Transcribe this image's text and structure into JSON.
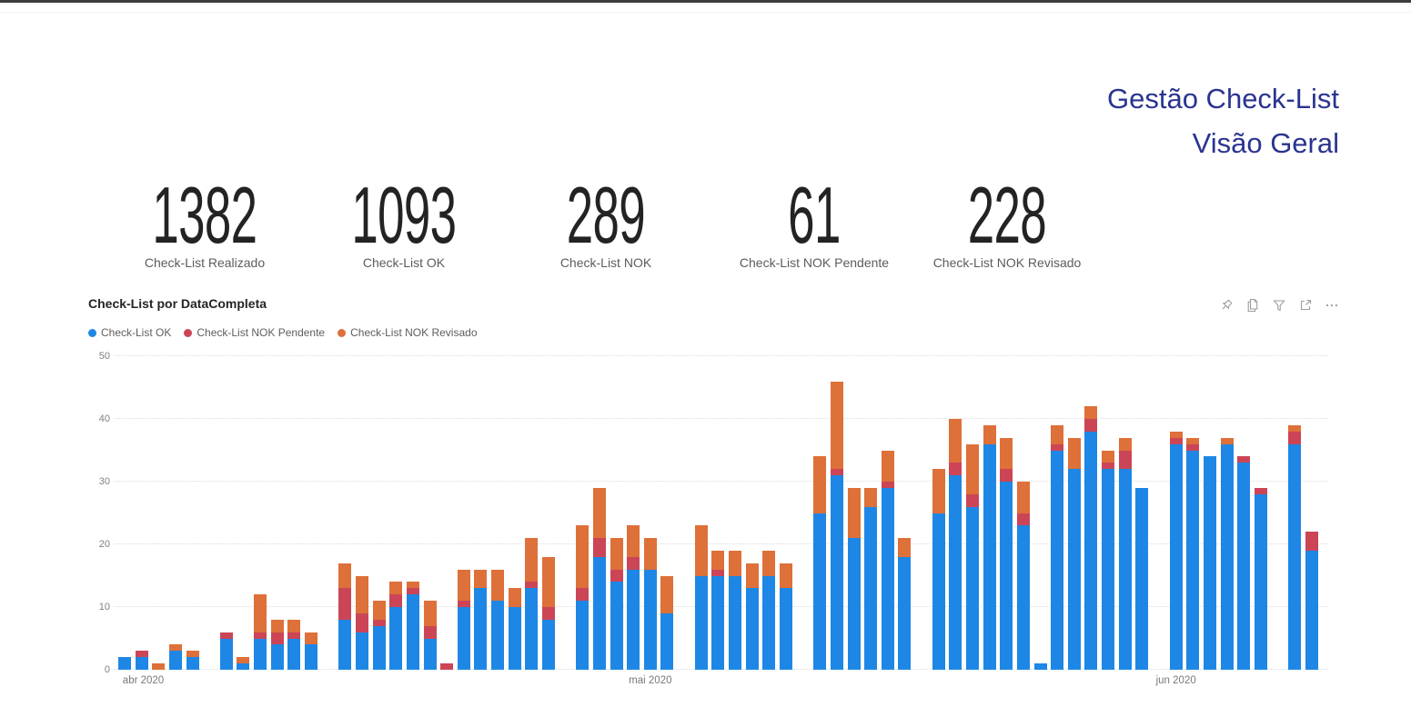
{
  "report": {
    "title_line1": "Gestão Check-List",
    "title_line2": "Visão Geral",
    "title_color": "#2A3490"
  },
  "kpis": [
    {
      "value": "1382",
      "label": "Check-List Realizado"
    },
    {
      "value": "1093",
      "label": "Check-List OK"
    },
    {
      "value": "289",
      "label": "Check-List NOK"
    },
    {
      "value": "61",
      "label": "Check-List NOK Pendente"
    },
    {
      "value": "228",
      "label": "Check-List NOK Revisado"
    }
  ],
  "visual_header": {
    "icons": [
      "pin",
      "copy",
      "filter",
      "focus-mode",
      "more-options"
    ],
    "icon_color": "#7e7e7e"
  },
  "chart_data": {
    "type": "bar",
    "stacked": true,
    "title": "Check-List por DataCompleta",
    "xlabel": "DataCompleta",
    "ylabel": "",
    "ylim": [
      0,
      50
    ],
    "y_ticks": [
      0,
      10,
      20,
      30,
      40,
      50
    ],
    "grid": "dotted-horizontal",
    "legend_position": "top-left",
    "series_names": [
      "Check-List OK",
      "Check-List NOK Pendente",
      "Check-List NOK Revisado"
    ],
    "legend": [
      {
        "name": "Check-List OK",
        "color": "#1E87E5"
      },
      {
        "name": "Check-List NOK Pendente",
        "color": "#CB4557"
      },
      {
        "name": "Check-List NOK Revisado",
        "color": "#DE7039"
      }
    ],
    "x_axis": {
      "labels": [
        {
          "text": "abr 2020",
          "slot": 1.1
        },
        {
          "text": "mai 2020",
          "slot": 31.0
        },
        {
          "text": "jun 2020",
          "slot": 62.0
        }
      ]
    },
    "slots_total": 71,
    "bars": [
      {
        "slot": 0,
        "ok": 2,
        "nok_pendente": 0,
        "nok_revisado": 0
      },
      {
        "slot": 1,
        "ok": 2,
        "nok_pendente": 1,
        "nok_revisado": 0
      },
      {
        "slot": 2,
        "ok": 0,
        "nok_pendente": 0,
        "nok_revisado": 1
      },
      {
        "slot": 3,
        "ok": 3,
        "nok_pendente": 0,
        "nok_revisado": 1
      },
      {
        "slot": 4,
        "ok": 2,
        "nok_pendente": 0,
        "nok_revisado": 1
      },
      {
        "slot": 6,
        "ok": 5,
        "nok_pendente": 1,
        "nok_revisado": 0
      },
      {
        "slot": 7,
        "ok": 1,
        "nok_pendente": 0,
        "nok_revisado": 1
      },
      {
        "slot": 8,
        "ok": 5,
        "nok_pendente": 1,
        "nok_revisado": 6
      },
      {
        "slot": 9,
        "ok": 4,
        "nok_pendente": 2,
        "nok_revisado": 2
      },
      {
        "slot": 10,
        "ok": 5,
        "nok_pendente": 1,
        "nok_revisado": 2
      },
      {
        "slot": 11,
        "ok": 4,
        "nok_pendente": 0,
        "nok_revisado": 2
      },
      {
        "slot": 13,
        "ok": 8,
        "nok_pendente": 5,
        "nok_revisado": 4
      },
      {
        "slot": 14,
        "ok": 6,
        "nok_pendente": 3,
        "nok_revisado": 6
      },
      {
        "slot": 15,
        "ok": 7,
        "nok_pendente": 1,
        "nok_revisado": 3
      },
      {
        "slot": 16,
        "ok": 10,
        "nok_pendente": 2,
        "nok_revisado": 2
      },
      {
        "slot": 17,
        "ok": 12,
        "nok_pendente": 1,
        "nok_revisado": 1
      },
      {
        "slot": 18,
        "ok": 5,
        "nok_pendente": 2,
        "nok_revisado": 4
      },
      {
        "slot": 19,
        "ok": 0,
        "nok_pendente": 1,
        "nok_revisado": 0
      },
      {
        "slot": 20,
        "ok": 10,
        "nok_pendente": 1,
        "nok_revisado": 5
      },
      {
        "slot": 21,
        "ok": 13,
        "nok_pendente": 0,
        "nok_revisado": 3
      },
      {
        "slot": 22,
        "ok": 11,
        "nok_pendente": 0,
        "nok_revisado": 5
      },
      {
        "slot": 23,
        "ok": 10,
        "nok_pendente": 0,
        "nok_revisado": 3
      },
      {
        "slot": 24,
        "ok": 13,
        "nok_pendente": 1,
        "nok_revisado": 7
      },
      {
        "slot": 25,
        "ok": 8,
        "nok_pendente": 2,
        "nok_revisado": 8
      },
      {
        "slot": 27,
        "ok": 11,
        "nok_pendente": 2,
        "nok_revisado": 10
      },
      {
        "slot": 28,
        "ok": 18,
        "nok_pendente": 3,
        "nok_revisado": 8
      },
      {
        "slot": 29,
        "ok": 14,
        "nok_pendente": 2,
        "nok_revisado": 5
      },
      {
        "slot": 30,
        "ok": 16,
        "nok_pendente": 2,
        "nok_revisado": 5
      },
      {
        "slot": 31,
        "ok": 16,
        "nok_pendente": 0,
        "nok_revisado": 5
      },
      {
        "slot": 32,
        "ok": 9,
        "nok_pendente": 0,
        "nok_revisado": 6
      },
      {
        "slot": 34,
        "ok": 15,
        "nok_pendente": 0,
        "nok_revisado": 8
      },
      {
        "slot": 35,
        "ok": 15,
        "nok_pendente": 1,
        "nok_revisado": 3
      },
      {
        "slot": 36,
        "ok": 15,
        "nok_pendente": 0,
        "nok_revisado": 4
      },
      {
        "slot": 37,
        "ok": 13,
        "nok_pendente": 0,
        "nok_revisado": 4
      },
      {
        "slot": 38,
        "ok": 15,
        "nok_pendente": 0,
        "nok_revisado": 4
      },
      {
        "slot": 39,
        "ok": 13,
        "nok_pendente": 0,
        "nok_revisado": 4
      },
      {
        "slot": 41,
        "ok": 25,
        "nok_pendente": 0,
        "nok_revisado": 9
      },
      {
        "slot": 42,
        "ok": 31,
        "nok_pendente": 1,
        "nok_revisado": 14
      },
      {
        "slot": 43,
        "ok": 21,
        "nok_pendente": 0,
        "nok_revisado": 8
      },
      {
        "slot": 44,
        "ok": 26,
        "nok_pendente": 0,
        "nok_revisado": 3
      },
      {
        "slot": 45,
        "ok": 29,
        "nok_pendente": 1,
        "nok_revisado": 5
      },
      {
        "slot": 46,
        "ok": 18,
        "nok_pendente": 0,
        "nok_revisado": 3
      },
      {
        "slot": 48,
        "ok": 25,
        "nok_pendente": 0,
        "nok_revisado": 7
      },
      {
        "slot": 49,
        "ok": 31,
        "nok_pendente": 2,
        "nok_revisado": 7
      },
      {
        "slot": 50,
        "ok": 26,
        "nok_pendente": 2,
        "nok_revisado": 8
      },
      {
        "slot": 51,
        "ok": 36,
        "nok_pendente": 0,
        "nok_revisado": 3
      },
      {
        "slot": 52,
        "ok": 30,
        "nok_pendente": 2,
        "nok_revisado": 5
      },
      {
        "slot": 53,
        "ok": 23,
        "nok_pendente": 2,
        "nok_revisado": 5
      },
      {
        "slot": 54,
        "ok": 1,
        "nok_pendente": 0,
        "nok_revisado": 0
      },
      {
        "slot": 55,
        "ok": 35,
        "nok_pendente": 1,
        "nok_revisado": 3
      },
      {
        "slot": 56,
        "ok": 32,
        "nok_pendente": 0,
        "nok_revisado": 5
      },
      {
        "slot": 57,
        "ok": 38,
        "nok_pendente": 2,
        "nok_revisado": 2
      },
      {
        "slot": 58,
        "ok": 32,
        "nok_pendente": 1,
        "nok_revisado": 2
      },
      {
        "slot": 59,
        "ok": 32,
        "nok_pendente": 3,
        "nok_revisado": 2
      },
      {
        "slot": 60,
        "ok": 29,
        "nok_pendente": 0,
        "nok_revisado": 0
      },
      {
        "slot": 62,
        "ok": 36,
        "nok_pendente": 1,
        "nok_revisado": 1
      },
      {
        "slot": 63,
        "ok": 35,
        "nok_pendente": 1,
        "nok_revisado": 1
      },
      {
        "slot": 64,
        "ok": 34,
        "nok_pendente": 0,
        "nok_revisado": 0
      },
      {
        "slot": 65,
        "ok": 36,
        "nok_pendente": 0,
        "nok_revisado": 1
      },
      {
        "slot": 66,
        "ok": 33,
        "nok_pendente": 1,
        "nok_revisado": 0
      },
      {
        "slot": 67,
        "ok": 28,
        "nok_pendente": 1,
        "nok_revisado": 0
      },
      {
        "slot": 69,
        "ok": 36,
        "nok_pendente": 2,
        "nok_revisado": 1
      },
      {
        "slot": 70,
        "ok": 19,
        "nok_pendente": 3,
        "nok_revisado": 0
      }
    ]
  }
}
